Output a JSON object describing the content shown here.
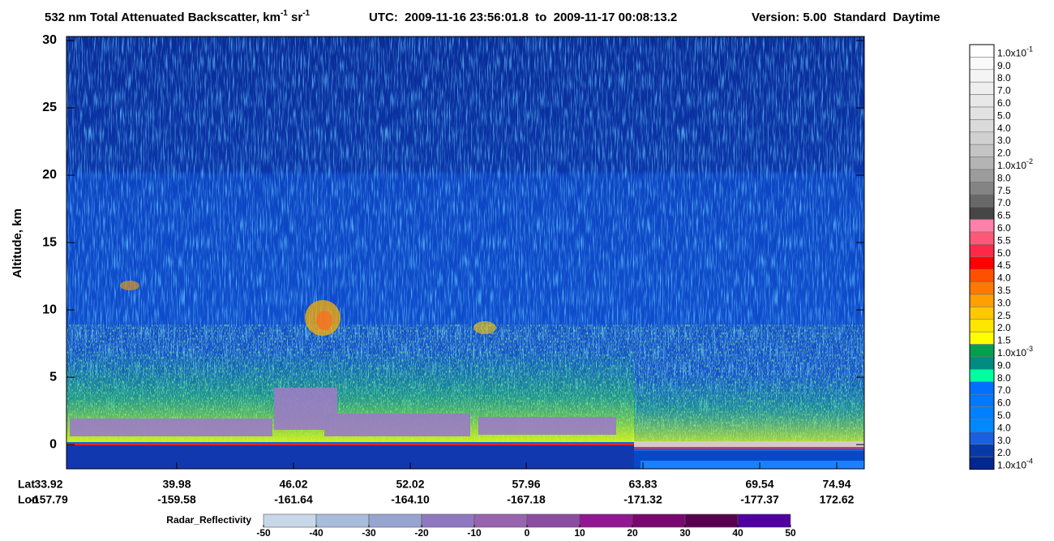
{
  "chart_data": {
    "type": "heatmap",
    "title": [
      "532 nm Total Attenuated Backscatter, km",
      "-1",
      " sr",
      "-1"
    ],
    "subtitle": "UTC:  2009-11-16 23:56:01.8  to  2009-11-17 00:08:13.2",
    "version": "Version: 5.00  Standard  Daytime",
    "y_label": "Altitude, km",
    "ylim": [
      -1.8,
      30.3
    ],
    "yticks": [
      0,
      5,
      10,
      15,
      20,
      25,
      30
    ],
    "x_row_labels": [
      "Lat",
      "Lon"
    ],
    "categories": [
      {
        "lat": "33.92",
        "lon": "-157.79"
      },
      {
        "lat": "39.98",
        "lon": "-159.58"
      },
      {
        "lat": "46.02",
        "lon": "-161.64"
      },
      {
        "lat": "52.02",
        "lon": "-164.10"
      },
      {
        "lat": "57.96",
        "lon": "-167.18"
      },
      {
        "lat": "63.83",
        "lon": "-171.32"
      },
      {
        "lat": "69.54",
        "lon": "-177.37"
      },
      {
        "lat": "74.94",
        "lon": "172.62"
      }
    ],
    "colorbar": [
      {
        "color": "#ffffff",
        "label": "1.0x10",
        "sup": "-1"
      },
      {
        "color": "#fafafa",
        "label": "9.0"
      },
      {
        "color": "#f4f4f4",
        "label": "8.0"
      },
      {
        "color": "#eeeeee",
        "label": "7.0"
      },
      {
        "color": "#e8e8e8",
        "label": "6.0"
      },
      {
        "color": "#e2e2e2",
        "label": "5.0"
      },
      {
        "color": "#dadada",
        "label": "4.0"
      },
      {
        "color": "#d0d0d0",
        "label": "3.0"
      },
      {
        "color": "#c4c4c4",
        "label": "2.0"
      },
      {
        "color": "#b4b4b4",
        "label": "1.0x10",
        "sup": "-2"
      },
      {
        "color": "#9c9c9c",
        "label": "8.0"
      },
      {
        "color": "#848484",
        "label": "7.5"
      },
      {
        "color": "#686868",
        "label": "7.0"
      },
      {
        "color": "#464646",
        "label": "6.5"
      },
      {
        "color": "#ff80a8",
        "label": "6.0"
      },
      {
        "color": "#ff5878",
        "label": "5.5"
      },
      {
        "color": "#ff2848",
        "label": "5.0"
      },
      {
        "color": "#ff0000",
        "label": "4.5"
      },
      {
        "color": "#ff5000",
        "label": "4.0"
      },
      {
        "color": "#ff7800",
        "label": "3.5"
      },
      {
        "color": "#ffa000",
        "label": "3.0"
      },
      {
        "color": "#ffc800",
        "label": "2.5"
      },
      {
        "color": "#ffe600",
        "label": "2.0"
      },
      {
        "color": "#ffff00",
        "label": "1.5"
      },
      {
        "color": "#00a050",
        "label": "1.0x10",
        "sup": "-3"
      },
      {
        "color": "#008c80",
        "label": "9.0"
      },
      {
        "color": "#00ffa0",
        "label": "8.0"
      },
      {
        "color": "#0070ff",
        "label": "7.0"
      },
      {
        "color": "#0078ff",
        "label": "6.0"
      },
      {
        "color": "#0080ff",
        "label": "5.0"
      },
      {
        "color": "#0088ff",
        "label": "4.0"
      },
      {
        "color": "#1860e0",
        "label": "3.0"
      },
      {
        "color": "#0838a8",
        "label": "2.0"
      },
      {
        "color": "#002890",
        "label": "1.0x10",
        "sup": "-4"
      }
    ],
    "radar_colorbar": {
      "label": "Radar_Reflectivity",
      "ticks": [
        -50,
        -40,
        -30,
        -20,
        -10,
        0,
        10,
        20,
        30,
        40,
        50
      ],
      "colors": [
        "#c8d8e8",
        "#a8bcdc",
        "#98a4d0",
        "#9078c0",
        "#9864b0",
        "#8c4ca0",
        "#901890",
        "#780870",
        "#580050",
        "#5000a0"
      ]
    }
  }
}
